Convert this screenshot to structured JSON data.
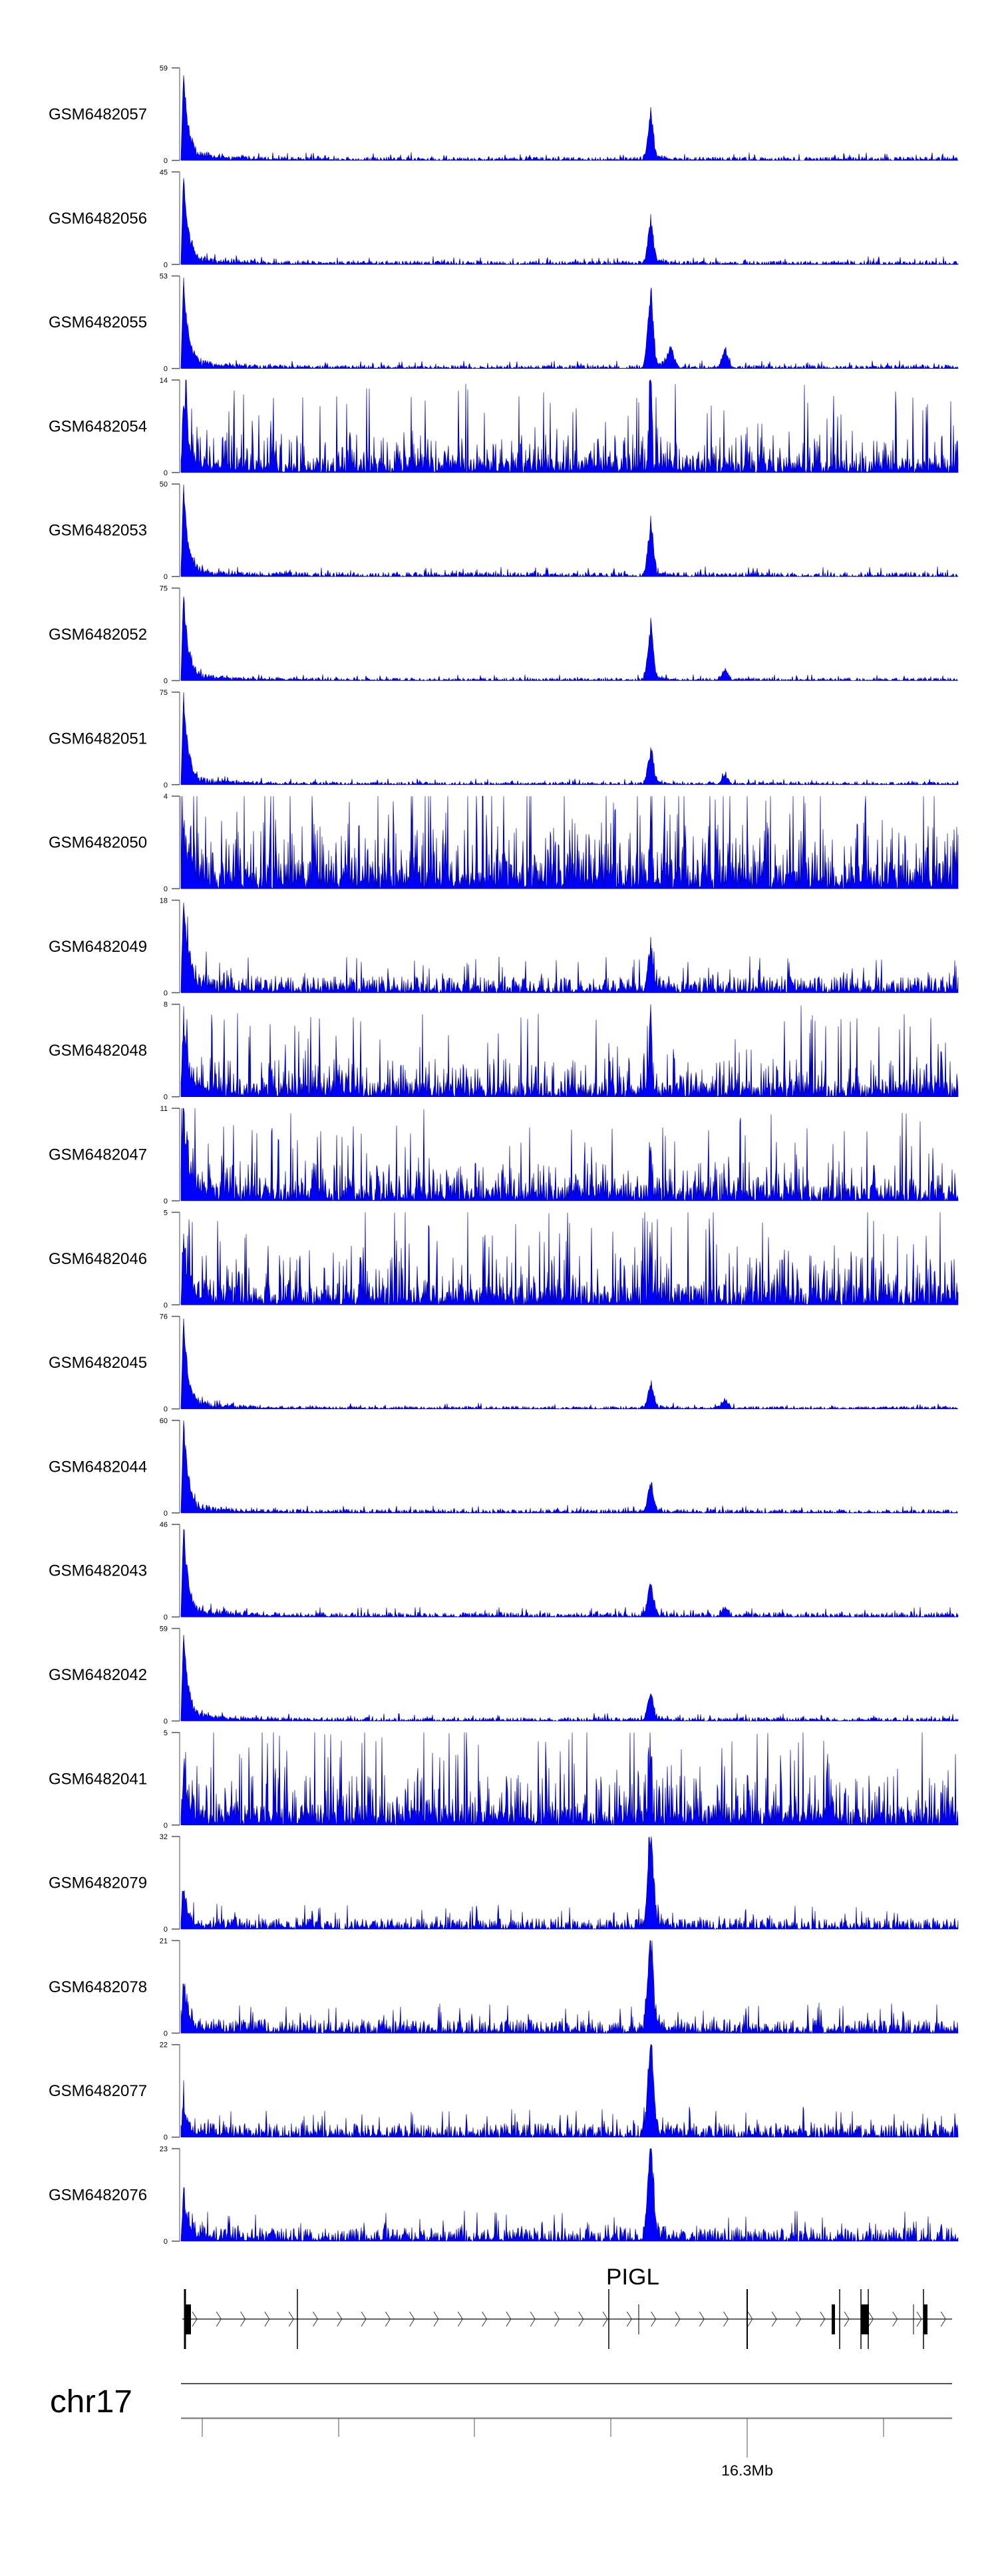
{
  "chart_data": {
    "type": "area",
    "title": "",
    "colors": {
      "fill": "#0000ff",
      "stroke": "#00008b",
      "axis": "#888888",
      "gene": "#000000"
    },
    "ylim_min": 0,
    "tracks": [
      {
        "name": "GSM6482057",
        "max": 59,
        "profile": "peaked",
        "left_peak": 1.0,
        "mid_peak": 0.45,
        "bg": 0.04,
        "bumps": []
      },
      {
        "name": "GSM6482056",
        "max": 45,
        "profile": "peaked",
        "left_peak": 1.0,
        "mid_peak": 0.45,
        "bg": 0.04,
        "bumps": []
      },
      {
        "name": "GSM6482055",
        "max": 53,
        "profile": "peaked",
        "left_peak": 1.0,
        "mid_peak": 0.8,
        "bg": 0.04,
        "bumps": [
          [
            0.63,
            0.25
          ],
          [
            0.7,
            0.2
          ]
        ]
      },
      {
        "name": "GSM6482054",
        "max": 14,
        "profile": "noisy",
        "left_peak": 0.75,
        "mid_peak": 1.0,
        "bg": 0.35,
        "bumps": []
      },
      {
        "name": "GSM6482053",
        "max": 50,
        "profile": "peaked",
        "left_peak": 1.0,
        "mid_peak": 0.5,
        "bg": 0.05,
        "bumps": []
      },
      {
        "name": "GSM6482052",
        "max": 75,
        "profile": "peaked",
        "left_peak": 1.0,
        "mid_peak": 0.55,
        "bg": 0.03,
        "bumps": [
          [
            0.7,
            0.12
          ]
        ]
      },
      {
        "name": "GSM6482051",
        "max": 75,
        "profile": "peaked",
        "left_peak": 1.0,
        "mid_peak": 0.35,
        "bg": 0.03,
        "bumps": [
          [
            0.7,
            0.1
          ]
        ]
      },
      {
        "name": "GSM6482050",
        "max": 4,
        "profile": "noisy",
        "left_peak": 0.5,
        "mid_peak": 0.6,
        "bg": 0.6,
        "bumps": []
      },
      {
        "name": "GSM6482049",
        "max": 18,
        "profile": "peaked",
        "left_peak": 1.0,
        "mid_peak": 0.45,
        "bg": 0.18,
        "bumps": []
      },
      {
        "name": "GSM6482048",
        "max": 8,
        "profile": "noisy",
        "left_peak": 0.8,
        "mid_peak": 1.0,
        "bg": 0.35,
        "bumps": []
      },
      {
        "name": "GSM6482047",
        "max": 11,
        "profile": "noisy",
        "left_peak": 1.0,
        "mid_peak": 0.5,
        "bg": 0.35,
        "bumps": []
      },
      {
        "name": "GSM6482046",
        "max": 5,
        "profile": "noisy",
        "left_peak": 0.7,
        "mid_peak": 0.6,
        "bg": 0.45,
        "bumps": []
      },
      {
        "name": "GSM6482045",
        "max": 76,
        "profile": "peaked",
        "left_peak": 1.0,
        "mid_peak": 0.25,
        "bg": 0.03,
        "bumps": [
          [
            0.7,
            0.1
          ]
        ]
      },
      {
        "name": "GSM6482044",
        "max": 60,
        "profile": "peaked",
        "left_peak": 1.0,
        "mid_peak": 0.3,
        "bg": 0.04,
        "bumps": []
      },
      {
        "name": "GSM6482043",
        "max": 46,
        "profile": "peaked",
        "left_peak": 1.0,
        "mid_peak": 0.35,
        "bg": 0.05,
        "bumps": [
          [
            0.7,
            0.1
          ]
        ]
      },
      {
        "name": "GSM6482042",
        "max": 59,
        "profile": "peaked",
        "left_peak": 1.0,
        "mid_peak": 0.3,
        "bg": 0.04,
        "bumps": []
      },
      {
        "name": "GSM6482041",
        "max": 5,
        "profile": "noisy",
        "left_peak": 0.5,
        "mid_peak": 0.6,
        "bg": 0.45,
        "bumps": []
      },
      {
        "name": "GSM6482079",
        "max": 32,
        "profile": "peaked",
        "left_peak": 0.4,
        "mid_peak": 1.0,
        "bg": 0.12,
        "bumps": []
      },
      {
        "name": "GSM6482078",
        "max": 21,
        "profile": "peaked",
        "left_peak": 0.55,
        "mid_peak": 1.0,
        "bg": 0.15,
        "bumps": []
      },
      {
        "name": "GSM6482077",
        "max": 22,
        "profile": "peaked",
        "left_peak": 0.3,
        "mid_peak": 1.0,
        "bg": 0.15,
        "bumps": []
      },
      {
        "name": "GSM6482076",
        "max": 23,
        "profile": "peaked",
        "left_peak": 0.5,
        "mid_peak": 1.0,
        "bg": 0.15,
        "bumps": []
      }
    ],
    "zero_label": "0",
    "gene": {
      "name": "PIGL",
      "strand": "+"
    },
    "axis": {
      "chromosome": "chr17",
      "tick_label": "16.3Mb"
    }
  }
}
